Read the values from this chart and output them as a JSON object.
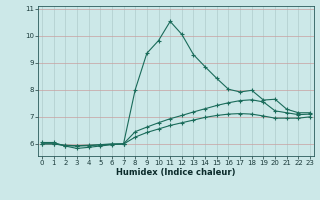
{
  "xlabel": "Humidex (Indice chaleur)",
  "bg_color": "#cce8e8",
  "grid_color_major": "#aaaaaa",
  "grid_color_minor": "#cccccc",
  "line_color": "#1a6b5a",
  "xlim": [
    -0.3,
    23.3
  ],
  "ylim": [
    5.55,
    11.1
  ],
  "yticks": [
    6,
    7,
    8,
    9,
    10,
    11
  ],
  "xticks": [
    0,
    1,
    2,
    3,
    4,
    5,
    6,
    7,
    8,
    9,
    10,
    11,
    12,
    13,
    14,
    15,
    16,
    17,
    18,
    19,
    20,
    21,
    22,
    23
  ],
  "series": [
    {
      "x": [
        0,
        1,
        2,
        3,
        4,
        5,
        6,
        7,
        8,
        9,
        10,
        11,
        12,
        13,
        14,
        15,
        16,
        17,
        18,
        19,
        20,
        21,
        22,
        23
      ],
      "y": [
        6.05,
        6.05,
        5.92,
        5.83,
        5.87,
        5.92,
        5.97,
        6.0,
        8.0,
        9.35,
        9.82,
        10.53,
        10.05,
        9.3,
        8.85,
        8.42,
        8.02,
        7.92,
        7.98,
        7.62,
        7.65,
        7.28,
        7.15,
        7.15
      ]
    },
    {
      "x": [
        0,
        1,
        2,
        3,
        4,
        5,
        6,
        7,
        8,
        9,
        10,
        11,
        12,
        13,
        14,
        15,
        16,
        17,
        18,
        19,
        20,
        21,
        22,
        23
      ],
      "y": [
        6.0,
        6.0,
        5.95,
        5.93,
        5.95,
        5.97,
        6.0,
        6.0,
        6.45,
        6.62,
        6.78,
        6.93,
        7.05,
        7.18,
        7.3,
        7.42,
        7.52,
        7.6,
        7.63,
        7.55,
        7.22,
        7.15,
        7.08,
        7.1
      ]
    },
    {
      "x": [
        0,
        1,
        2,
        3,
        4,
        5,
        6,
        7,
        8,
        9,
        10,
        11,
        12,
        13,
        14,
        15,
        16,
        17,
        18,
        19,
        20,
        21,
        22,
        23
      ],
      "y": [
        6.0,
        6.0,
        5.93,
        5.92,
        5.93,
        5.96,
        5.98,
        5.99,
        6.25,
        6.42,
        6.55,
        6.68,
        6.78,
        6.88,
        6.98,
        7.05,
        7.1,
        7.12,
        7.1,
        7.03,
        6.95,
        6.95,
        6.95,
        7.0
      ]
    }
  ]
}
